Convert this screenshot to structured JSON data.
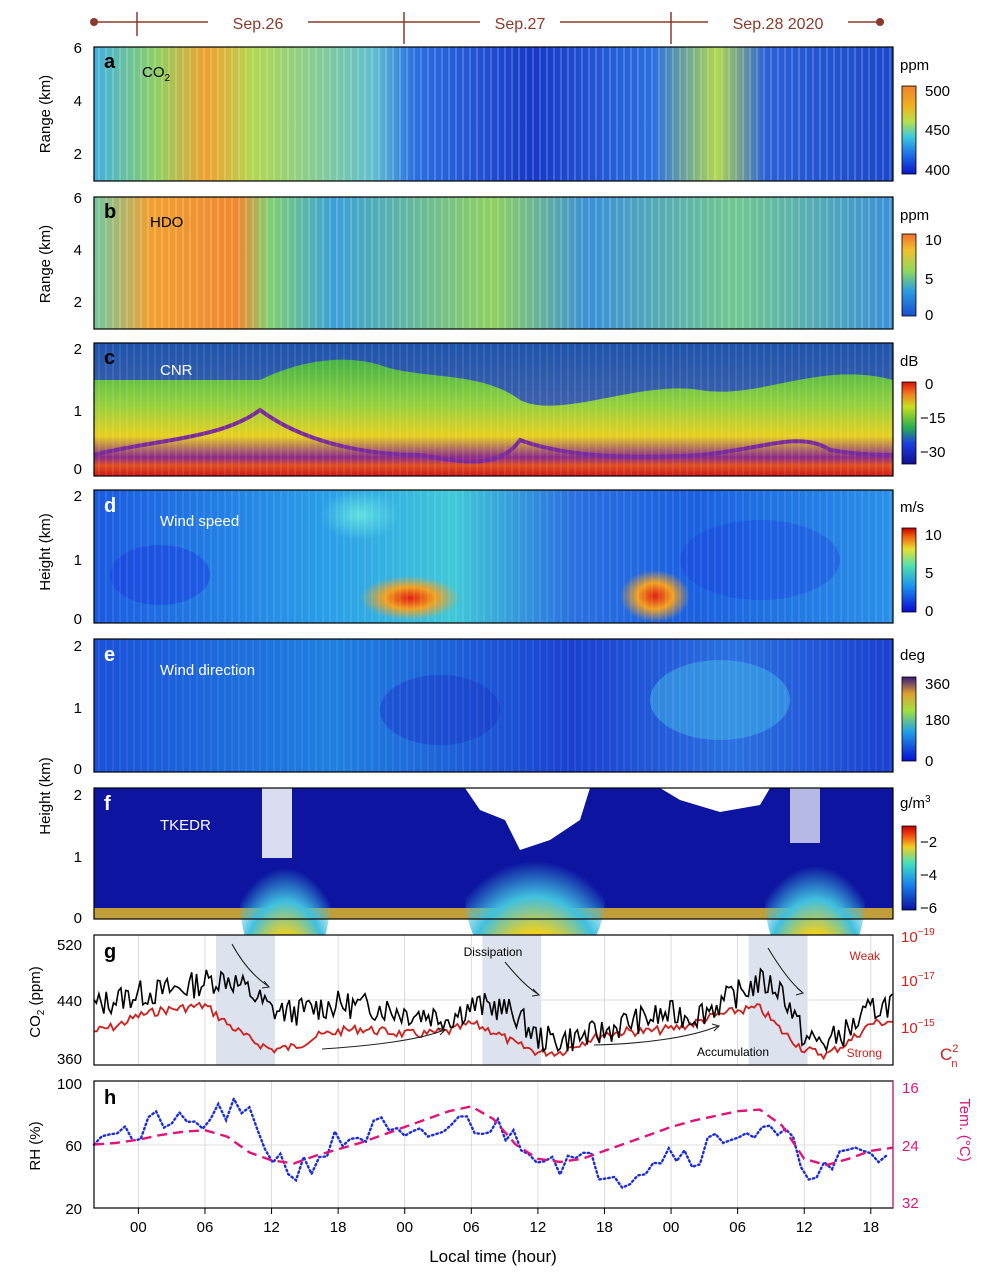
{
  "date_header": {
    "segments": [
      "Sep.26",
      "Sep.27",
      "Sep.28 2020"
    ],
    "color": "#8b3a2a"
  },
  "x_axis": {
    "label": "Local time (hour)",
    "ticks": [
      "00",
      "06",
      "12",
      "18",
      "00",
      "06",
      "12",
      "18",
      "00",
      "06",
      "12",
      "18"
    ]
  },
  "colors": {
    "black_series": "#000000",
    "red_series": "#d0201c",
    "rh_series": "#1a2ee0",
    "temp_series": "#e0147a",
    "shade": "#dde3ee"
  },
  "chart_data": [
    {
      "panel": "a",
      "type": "heatmap",
      "inset_label": "CO",
      "inset_sub": "2",
      "ylabel": "Range (km)",
      "yticks": [
        "2",
        "4",
        "6"
      ],
      "ylim": [
        1,
        6
      ],
      "colorbar": {
        "unit": "ppm",
        "ticks": [
          "500",
          "450",
          "400"
        ],
        "range": [
          400,
          500
        ]
      }
    },
    {
      "panel": "b",
      "type": "heatmap",
      "inset_label": "HDO",
      "ylabel": "Range (km)",
      "yticks": [
        "2",
        "4",
        "6"
      ],
      "ylim": [
        1,
        6
      ],
      "colorbar": {
        "unit": "ppm",
        "ticks": [
          "10",
          "5",
          "0"
        ],
        "range": [
          0,
          10
        ]
      }
    },
    {
      "panel": "c",
      "type": "heatmap",
      "inset_label": "CNR",
      "ylabel": "",
      "yticks": [
        "0",
        "1",
        "2"
      ],
      "ylim": [
        0,
        2
      ],
      "colorbar": {
        "unit": "dB",
        "ticks": [
          "0",
          "−15",
          "−30"
        ],
        "range": [
          -30,
          0
        ]
      }
    },
    {
      "panel": "d",
      "type": "heatmap",
      "inset_label": "Wind speed",
      "ylabel": "Height (km)",
      "yticks": [
        "0",
        "1",
        "2"
      ],
      "ylim": [
        0,
        2
      ],
      "colorbar": {
        "unit": "m/s",
        "ticks": [
          "10",
          "5",
          "0"
        ],
        "range": [
          0,
          10
        ]
      }
    },
    {
      "panel": "e",
      "type": "heatmap",
      "inset_label": "Wind direction",
      "ylabel": "",
      "yticks": [
        "0",
        "1",
        "2"
      ],
      "ylim": [
        0,
        2
      ],
      "colorbar": {
        "unit": "deg",
        "ticks": [
          "360",
          "180",
          "0"
        ],
        "range": [
          0,
          360
        ]
      }
    },
    {
      "panel": "f",
      "type": "heatmap",
      "inset_label": "TKEDR",
      "ylabel": "Height (km)",
      "yticks": [
        "0",
        "1",
        "2"
      ],
      "ylim": [
        0,
        2
      ],
      "colorbar": {
        "unit": "g/m",
        "unit_sup": "3",
        "ticks": [
          "−2",
          "−4",
          "−6"
        ],
        "range": [
          -6,
          -2
        ]
      }
    },
    {
      "panel": "g",
      "type": "line",
      "ylabel": "CO",
      "ylabel_sub": "2",
      "ylabel_tail": " (ppm)",
      "yticks": [
        "520",
        "440",
        "360"
      ],
      "ylim": [
        360,
        520
      ],
      "right_axis": {
        "label_main": "C",
        "label_sub": "n",
        "label_sup": "2",
        "ticks": [
          {
            "base": "10",
            "exp": "−19"
          },
          {
            "base": "10",
            "exp": "−17"
          },
          {
            "base": "10",
            "exp": "−15"
          }
        ],
        "scale": "log",
        "range": [
          -14,
          -19
        ],
        "weak_label": "Weak",
        "strong_label": "Strong"
      },
      "annotations": [
        "Dissipation",
        "Accumulation"
      ],
      "shaded_hours": [
        [
          7,
          12.3
        ],
        [
          31,
          36.3
        ],
        [
          55,
          60.3
        ]
      ],
      "x_range_hours": [
        -4,
        68
      ],
      "series": [
        {
          "key": "co2",
          "unit": "ppm",
          "x": [
            -4,
            -2,
            0,
            2,
            4,
            6,
            8,
            10,
            12,
            14,
            16,
            18,
            20,
            22,
            24,
            26,
            28,
            30,
            32,
            34,
            36,
            38,
            40,
            42,
            44,
            46,
            48,
            50,
            52,
            54,
            56,
            58,
            60,
            62,
            64,
            66,
            68
          ],
          "y": [
            440,
            448,
            455,
            458,
            462,
            470,
            475,
            458,
            435,
            432,
            438,
            442,
            440,
            438,
            432,
            430,
            425,
            440,
            440,
            430,
            400,
            398,
            402,
            408,
            420,
            425,
            430,
            428,
            440,
            455,
            470,
            460,
            400,
            395,
            410,
            435,
            445
          ]
        },
        {
          "key": "cn2",
          "unit": "log10 m^-2/3",
          "x": [
            -4,
            -2,
            0,
            2,
            4,
            6,
            8,
            10,
            12,
            14,
            16,
            18,
            20,
            22,
            24,
            26,
            28,
            30,
            32,
            34,
            36,
            38,
            40,
            42,
            44,
            46,
            48,
            50,
            52,
            54,
            56,
            58,
            60,
            62,
            64,
            66,
            68
          ],
          "y": [
            -15.6,
            -15.8,
            -16.2,
            -16.4,
            -16.5,
            -16.6,
            -15.9,
            -15.3,
            -14.9,
            -15.0,
            -15.4,
            -15.6,
            -15.7,
            -15.6,
            -15.5,
            -15.5,
            -15.6,
            -15.9,
            -15.6,
            -15.1,
            -14.8,
            -14.8,
            -15.2,
            -15.5,
            -15.6,
            -15.6,
            -15.7,
            -15.9,
            -16.2,
            -16.4,
            -16.5,
            -15.6,
            -14.9,
            -14.7,
            -15.2,
            -15.9,
            -16.0
          ]
        }
      ]
    },
    {
      "panel": "h",
      "type": "line",
      "ylabel": "RH (%)",
      "yticks": [
        "100",
        "60",
        "20"
      ],
      "ylim": [
        20,
        100
      ],
      "right_axis": {
        "label": "Tem. (°C)",
        "ticks": [
          "16",
          "24",
          "32"
        ],
        "range": [
          32,
          16
        ]
      },
      "x_range_hours": [
        -4,
        68
      ],
      "series": [
        {
          "key": "rh",
          "unit": "%",
          "style": "dotted",
          "x": [
            -4,
            -2,
            0,
            2,
            4,
            6,
            8,
            10,
            12,
            14,
            16,
            18,
            20,
            22,
            24,
            26,
            28,
            30,
            32,
            34,
            36,
            38,
            40,
            42,
            44,
            46,
            48,
            50,
            52,
            54,
            56,
            58,
            60,
            62,
            64,
            66,
            68
          ],
          "y": [
            68,
            72,
            62,
            78,
            70,
            74,
            82,
            75,
            55,
            42,
            52,
            62,
            66,
            70,
            60,
            64,
            72,
            74,
            70,
            66,
            56,
            50,
            48,
            46,
            40,
            50,
            56,
            54,
            62,
            70,
            66,
            65,
            48,
            42,
            52,
            55,
            48
          ]
        },
        {
          "key": "temp",
          "unit": "°C",
          "style": "dashed",
          "x": [
            -4,
            -2,
            0,
            2,
            4,
            6,
            8,
            10,
            12,
            14,
            16,
            18,
            20,
            22,
            24,
            26,
            28,
            30,
            32,
            34,
            36,
            38,
            40,
            42,
            44,
            46,
            48,
            50,
            52,
            54,
            56,
            58,
            60,
            62,
            64,
            66,
            68
          ],
          "y": [
            24.0,
            23.8,
            23.4,
            22.8,
            22.4,
            22.2,
            23.0,
            25.0,
            26.0,
            26.4,
            25.4,
            24.6,
            23.8,
            22.8,
            21.8,
            20.8,
            19.8,
            19.2,
            20.8,
            24.0,
            25.8,
            26.2,
            25.8,
            24.8,
            23.8,
            22.8,
            21.8,
            21.0,
            20.4,
            19.8,
            19.6,
            21.6,
            25.8,
            26.6,
            25.8,
            24.8,
            24.4
          ]
        }
      ]
    }
  ]
}
